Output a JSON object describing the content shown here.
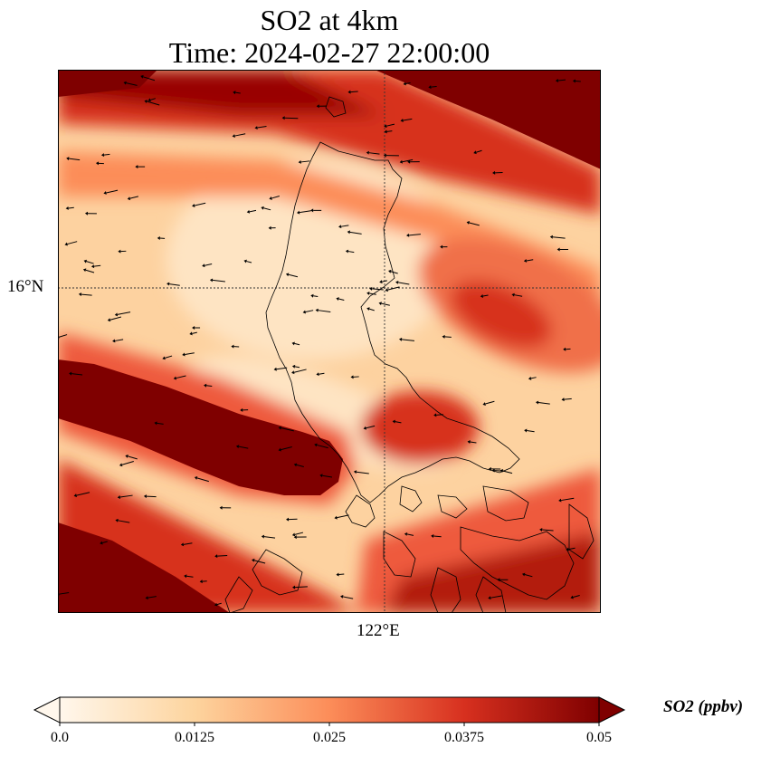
{
  "title": {
    "line1": "SO2 at 4km",
    "line2": "Time: 2024-02-27 22:00:00"
  },
  "map": {
    "lat_label": "16°N",
    "lon_label": "122°E",
    "graticule_lat": 16,
    "graticule_lon": 122,
    "features": [
      "coastline",
      "gridlines",
      "wind-vectors",
      "so2-field"
    ]
  },
  "colorbar": {
    "label": "SO2 (ppbv)",
    "ticks": [
      "0.0",
      "0.0125",
      "0.025",
      "0.0375",
      "0.05"
    ],
    "range": [
      0.0,
      0.05
    ],
    "extend": "both",
    "colormap": "OrRd",
    "colors": [
      "#fff7ec",
      "#fdd49e",
      "#fc8d59",
      "#d7301f",
      "#7f0000"
    ]
  }
}
